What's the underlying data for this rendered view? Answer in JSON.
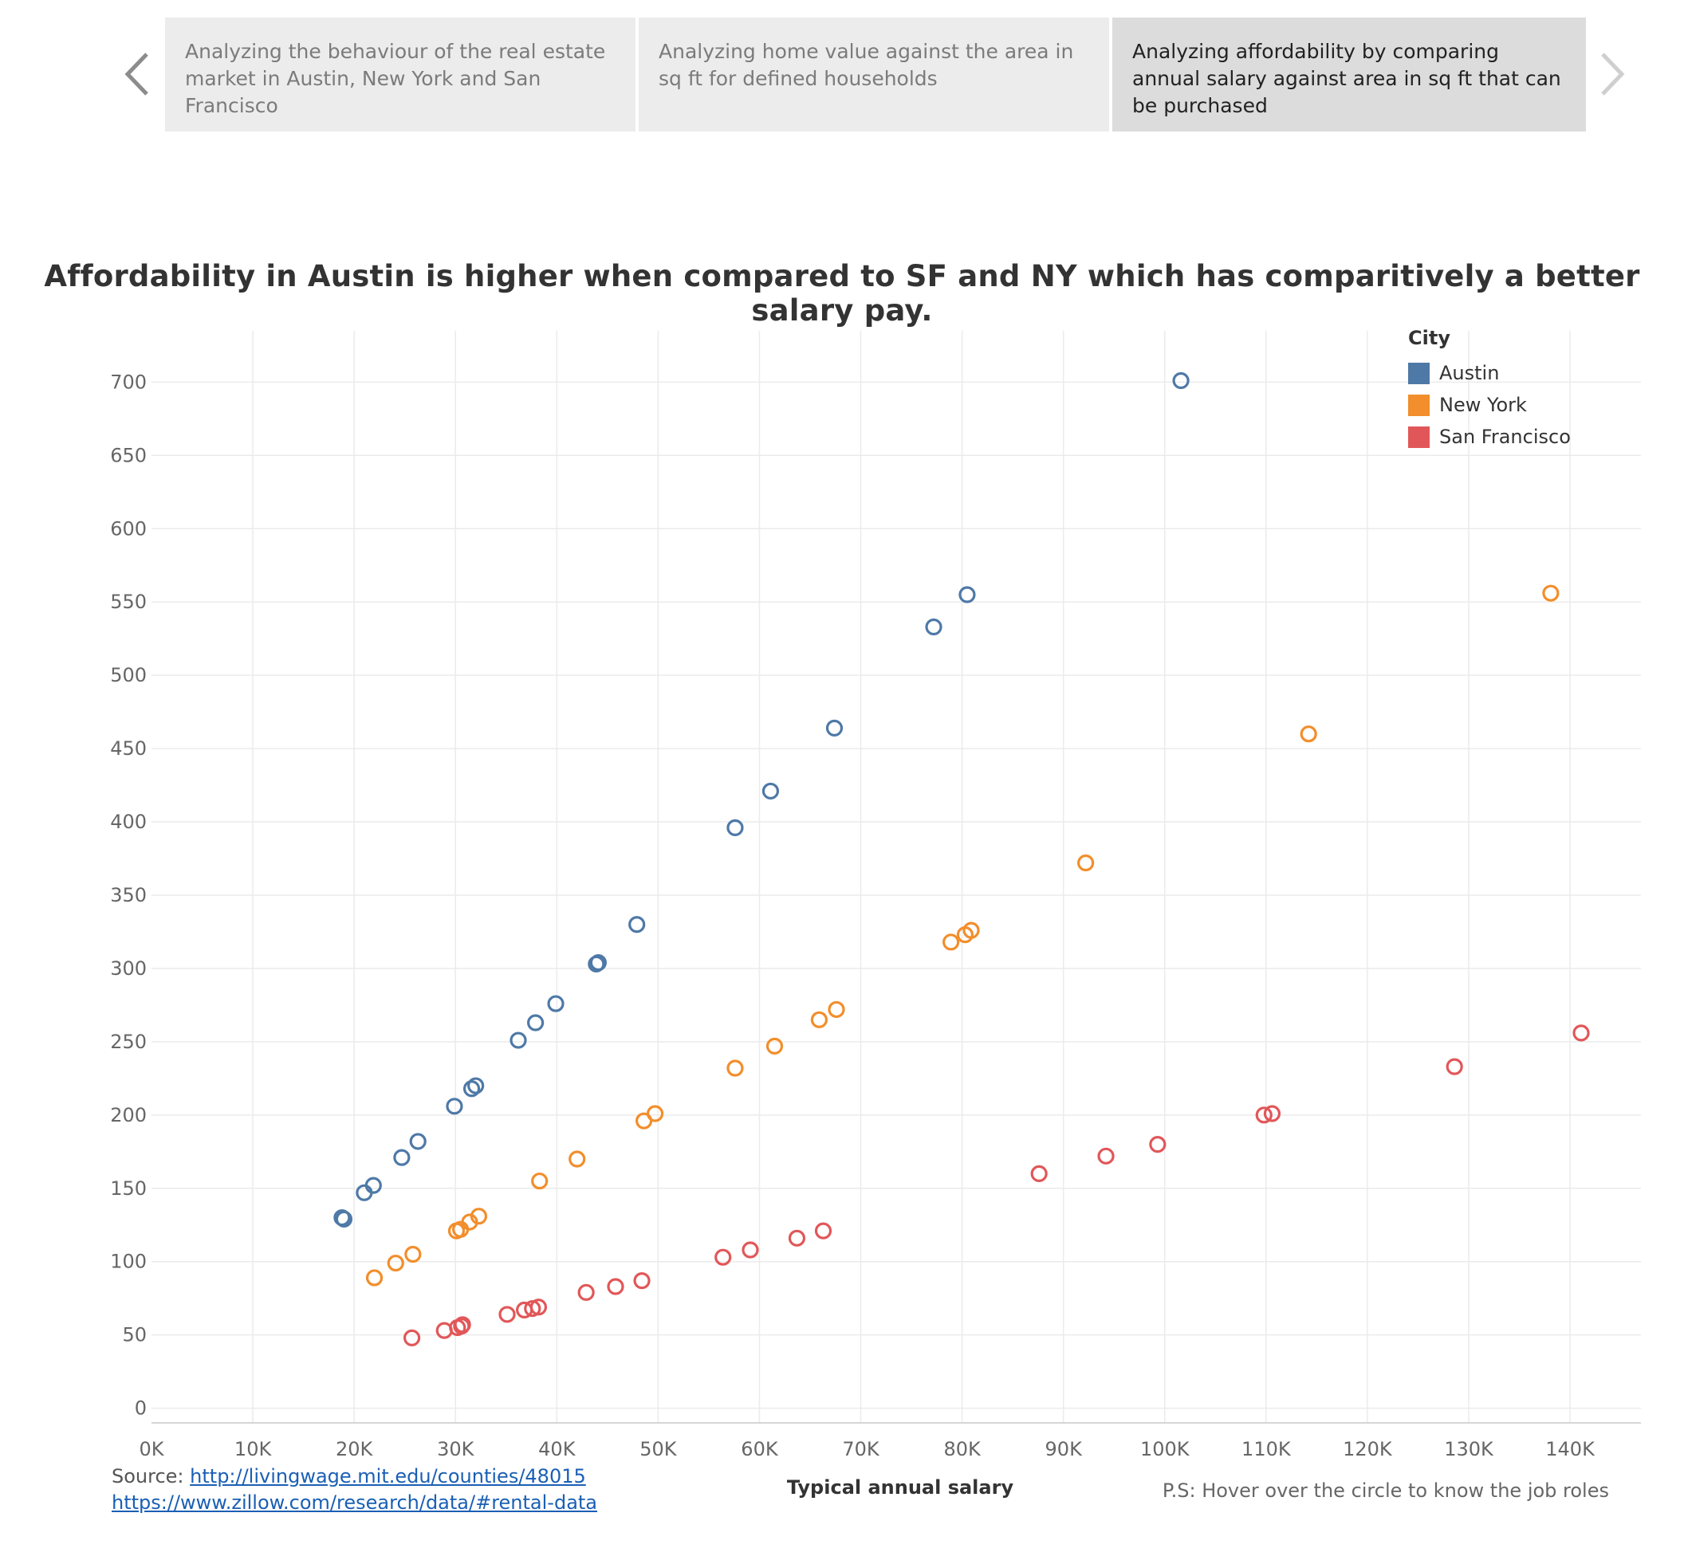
{
  "story": {
    "prev_icon": "chevron-left-icon",
    "next_icon": "chevron-right-icon",
    "tabs": [
      {
        "label": "Analyzing the behaviour of the real estate market in Austin, New York and San Francisco",
        "active": false
      },
      {
        "label": "Analyzing home value against the area in sq ft for defined households",
        "active": false
      },
      {
        "label": "Analyzing affordability by comparing annual salary against area in sq ft that can be purchased",
        "active": true
      }
    ]
  },
  "footer": {
    "source_prefix": "Source:",
    "source_link_1": "http://livingwage.mit.edu/counties/48015",
    "source_link_2": "https://www.zillow.com/research/data/#rental-data",
    "note": "P.S: Hover over the circle to know the job roles"
  },
  "chart_data": {
    "type": "scatter",
    "title": "Affordability in Austin is higher when compared to SF and NY which has comparitively a better salary pay.",
    "xlabel": "Typical annual salary",
    "ylabel": "",
    "xlim": [
      0,
      147000
    ],
    "ylim": [
      -10,
      735
    ],
    "x_ticks": [
      0,
      10000,
      20000,
      30000,
      40000,
      50000,
      60000,
      70000,
      80000,
      90000,
      100000,
      110000,
      120000,
      130000,
      140000
    ],
    "x_tick_labels": [
      "0K",
      "10K",
      "20K",
      "30K",
      "40K",
      "50K",
      "60K",
      "70K",
      "80K",
      "90K",
      "100K",
      "110K",
      "120K",
      "130K",
      "140K"
    ],
    "y_ticks": [
      0,
      50,
      100,
      150,
      200,
      250,
      300,
      350,
      400,
      450,
      500,
      550,
      600,
      650,
      700
    ],
    "y_tick_labels": [
      "0",
      "50",
      "100",
      "150",
      "200",
      "250",
      "300",
      "350",
      "400",
      "450",
      "500",
      "550",
      "600",
      "650",
      "700"
    ],
    "grid": true,
    "marker": "hollow-circle",
    "legend": {
      "title": "City",
      "position": "top-right"
    },
    "series": [
      {
        "name": "Austin",
        "color": "#4e79a7",
        "points": [
          [
            18800,
            130
          ],
          [
            19000,
            129
          ],
          [
            21000,
            147
          ],
          [
            21900,
            152
          ],
          [
            24700,
            171
          ],
          [
            26300,
            182
          ],
          [
            29900,
            206
          ],
          [
            31600,
            218
          ],
          [
            32000,
            220
          ],
          [
            36200,
            251
          ],
          [
            37900,
            263
          ],
          [
            39900,
            276
          ],
          [
            43900,
            303
          ],
          [
            44100,
            304
          ],
          [
            47900,
            330
          ],
          [
            57600,
            396
          ],
          [
            61100,
            421
          ],
          [
            67400,
            464
          ],
          [
            77200,
            533
          ],
          [
            80500,
            555
          ],
          [
            101600,
            701
          ]
        ]
      },
      {
        "name": "New York",
        "color": "#f28e2b",
        "points": [
          [
            22000,
            89
          ],
          [
            24100,
            99
          ],
          [
            25800,
            105
          ],
          [
            30100,
            121
          ],
          [
            30500,
            122
          ],
          [
            31400,
            127
          ],
          [
            32300,
            131
          ],
          [
            38300,
            155
          ],
          [
            42000,
            170
          ],
          [
            48600,
            196
          ],
          [
            49700,
            201
          ],
          [
            57600,
            232
          ],
          [
            61500,
            247
          ],
          [
            65900,
            265
          ],
          [
            67600,
            272
          ],
          [
            78900,
            318
          ],
          [
            80300,
            323
          ],
          [
            80900,
            326
          ],
          [
            92200,
            372
          ],
          [
            114200,
            460
          ],
          [
            138100,
            556
          ]
        ]
      },
      {
        "name": "San Francisco",
        "color": "#e15759",
        "points": [
          [
            25700,
            48
          ],
          [
            28900,
            53
          ],
          [
            30200,
            55
          ],
          [
            30600,
            56
          ],
          [
            30700,
            57
          ],
          [
            35100,
            64
          ],
          [
            36800,
            67
          ],
          [
            37600,
            68
          ],
          [
            38200,
            69
          ],
          [
            42900,
            79
          ],
          [
            45800,
            83
          ],
          [
            48400,
            87
          ],
          [
            56400,
            103
          ],
          [
            59100,
            108
          ],
          [
            63700,
            116
          ],
          [
            66300,
            121
          ],
          [
            87600,
            160
          ],
          [
            94200,
            172
          ],
          [
            99300,
            180
          ],
          [
            109800,
            200
          ],
          [
            110600,
            201
          ],
          [
            128600,
            233
          ],
          [
            141100,
            256
          ]
        ]
      }
    ]
  }
}
